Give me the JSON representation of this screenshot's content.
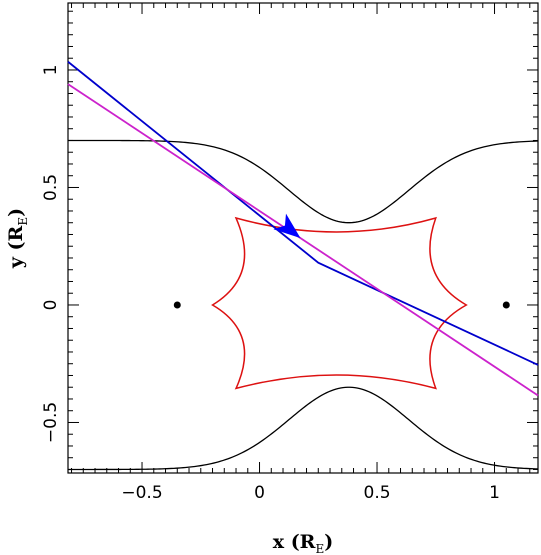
{
  "chart_data": {
    "type": "line",
    "xlabel": "x (R",
    "xlabel_sub": "E",
    "xlabel_end": ")",
    "ylabel": "y (R",
    "ylabel_sub": "E",
    "ylabel_end": ")",
    "xlim": [
      -0.815,
      1.185
    ],
    "ylim": [
      -0.715,
      1.285
    ],
    "grid": false,
    "x_ticks": [
      {
        "value": -0.5,
        "label": "−0.5"
      },
      {
        "value": 0,
        "label": "0"
      },
      {
        "value": 0.5,
        "label": "0.5"
      },
      {
        "value": 1,
        "label": "1"
      }
    ],
    "y_ticks": [
      {
        "value": -0.5,
        "label": "−0.5"
      },
      {
        "value": 0,
        "label": "0"
      },
      {
        "value": 0.5,
        "label": "0.5"
      },
      {
        "value": 1,
        "label": "1"
      }
    ],
    "lenses": [
      {
        "x": -0.35,
        "y": 0
      },
      {
        "x": 1.05,
        "y": 0
      }
    ],
    "critical_curve": {
      "color": "#000000",
      "x_range": [
        -0.815,
        1.185
      ],
      "center_x": 0.38,
      "y_inner": 0.35,
      "y_outer": 0.7,
      "half_width": 0.36
    },
    "caustic": {
      "color": "#dd1111",
      "vertices": [
        [
          -0.1,
          0.37
        ],
        [
          0.75,
          0.37
        ],
        [
          0.88,
          0.0
        ],
        [
          0.75,
          -0.355
        ],
        [
          -0.1,
          -0.355
        ],
        [
          -0.2,
          0.0
        ]
      ],
      "bulge": [
        0.2,
        0.2,
        0.2,
        0.2,
        0.2,
        0.2
      ]
    },
    "series": [
      {
        "color": "#0000cc",
        "x": [
          -0.815,
          0.25,
          1.185
        ],
        "y": [
          1.035,
          0.18,
          -0.255
        ]
      },
      {
        "color": "#cc22cc",
        "x": [
          -0.815,
          1.185
        ],
        "y": [
          0.94,
          -0.385
        ]
      }
    ],
    "arrow": {
      "color": "#0000ff",
      "x": 0.13,
      "y": 0.32
    }
  }
}
